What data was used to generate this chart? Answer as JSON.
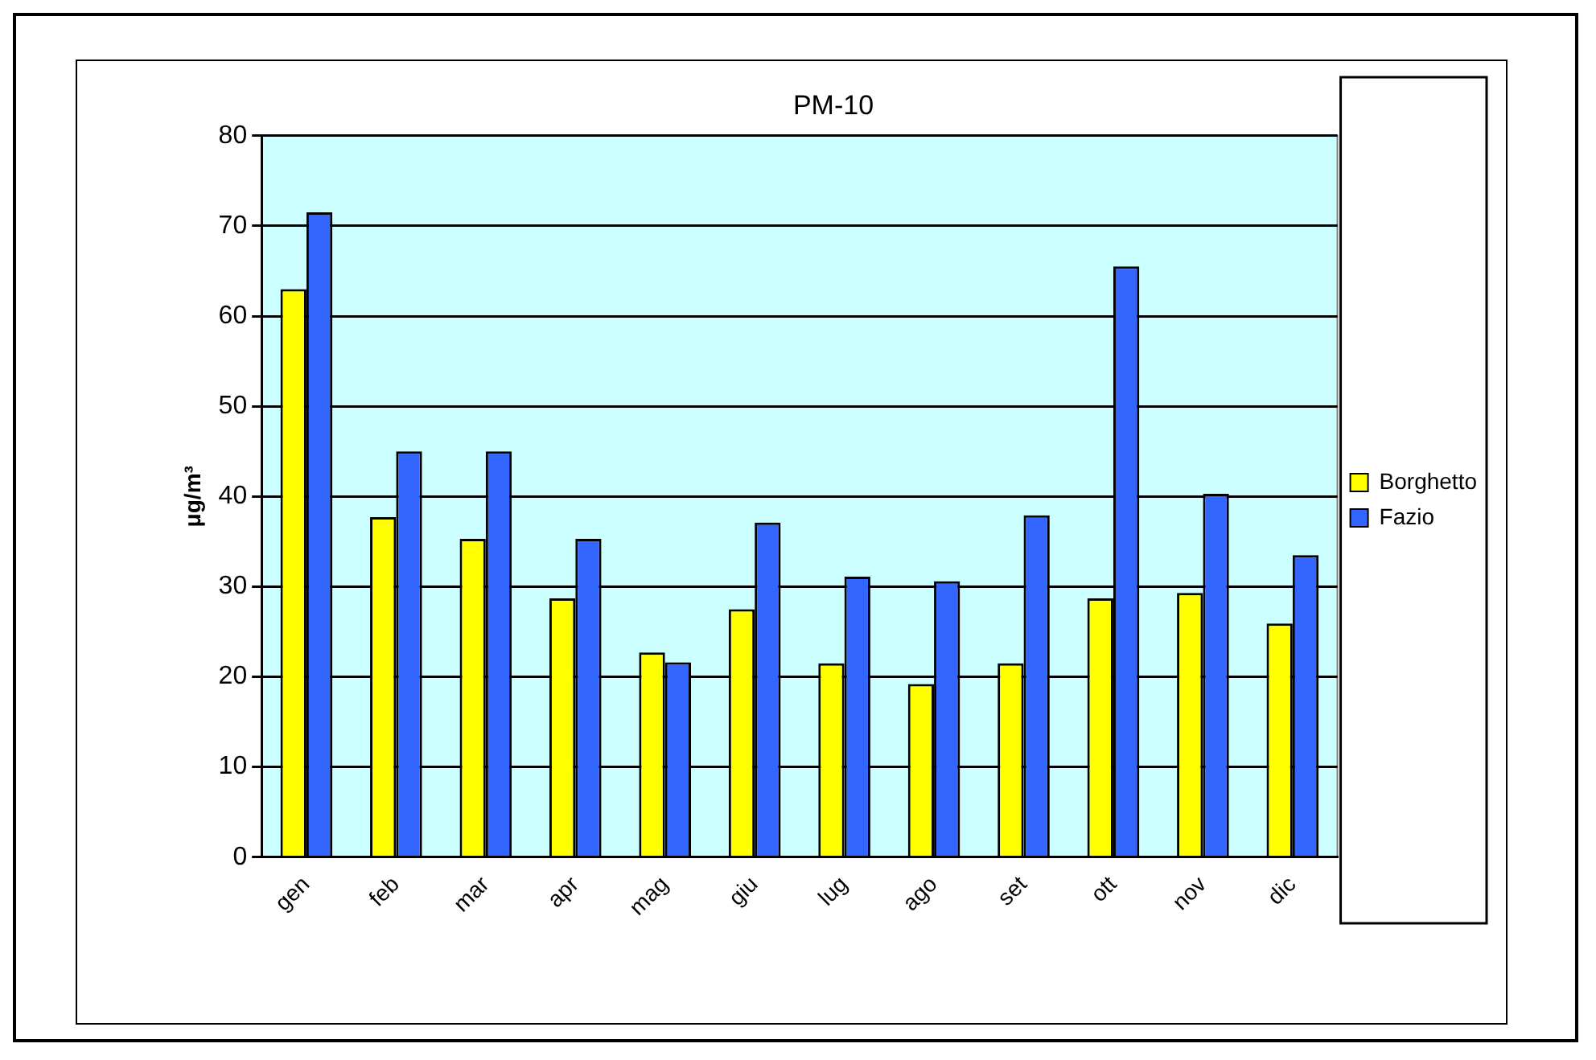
{
  "chart_data": {
    "type": "bar",
    "title": "PM-10",
    "ylabel": "μg/m³",
    "categories": [
      "gen",
      "feb",
      "mar",
      "apr",
      "mag",
      "giu",
      "lug",
      "ago",
      "set",
      "ott",
      "nov",
      "dic"
    ],
    "series": [
      {
        "name": "Borghetto",
        "color": "#ffff00",
        "values": [
          63.0,
          37.7,
          35.3,
          28.7,
          22.7,
          27.5,
          21.5,
          19.2,
          21.5,
          28.7,
          29.3,
          25.9
        ]
      },
      {
        "name": "Fazio",
        "color": "#3366ff",
        "values": [
          71.5,
          45.0,
          45.0,
          35.3,
          21.6,
          37.1,
          31.1,
          30.6,
          37.9,
          65.5,
          40.3,
          33.5
        ]
      }
    ],
    "ylim": [
      0,
      80
    ],
    "yticks": [
      0,
      10,
      20,
      30,
      40,
      50,
      60,
      70,
      80
    ],
    "grid": "y",
    "legend": "right"
  }
}
